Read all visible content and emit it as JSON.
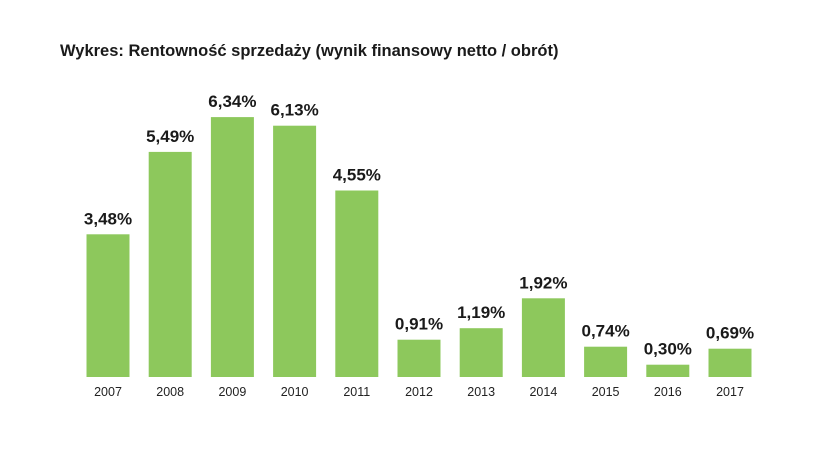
{
  "chart_data": {
    "type": "bar",
    "title": "Wykres: Rentowność sprzedaży (wynik finansowy netto / obrót)",
    "xlabel": "",
    "ylabel": "",
    "categories": [
      "2007",
      "2008",
      "2009",
      "2010",
      "2011",
      "2012",
      "2013",
      "2014",
      "2015",
      "2016",
      "2017"
    ],
    "values": [
      3.48,
      5.49,
      6.34,
      6.13,
      4.55,
      0.91,
      1.19,
      1.92,
      0.74,
      0.3,
      0.69
    ],
    "labels": [
      "3,48%",
      "5,49%",
      "6,34%",
      "6,13%",
      "4,55%",
      "0,91%",
      "1,19%",
      "1,92%",
      "0,74%",
      "0,30%",
      "0,69%"
    ],
    "ylim": [
      0,
      6.6
    ],
    "grid": false,
    "legend": "none",
    "bar_color": "#8dc85c"
  }
}
